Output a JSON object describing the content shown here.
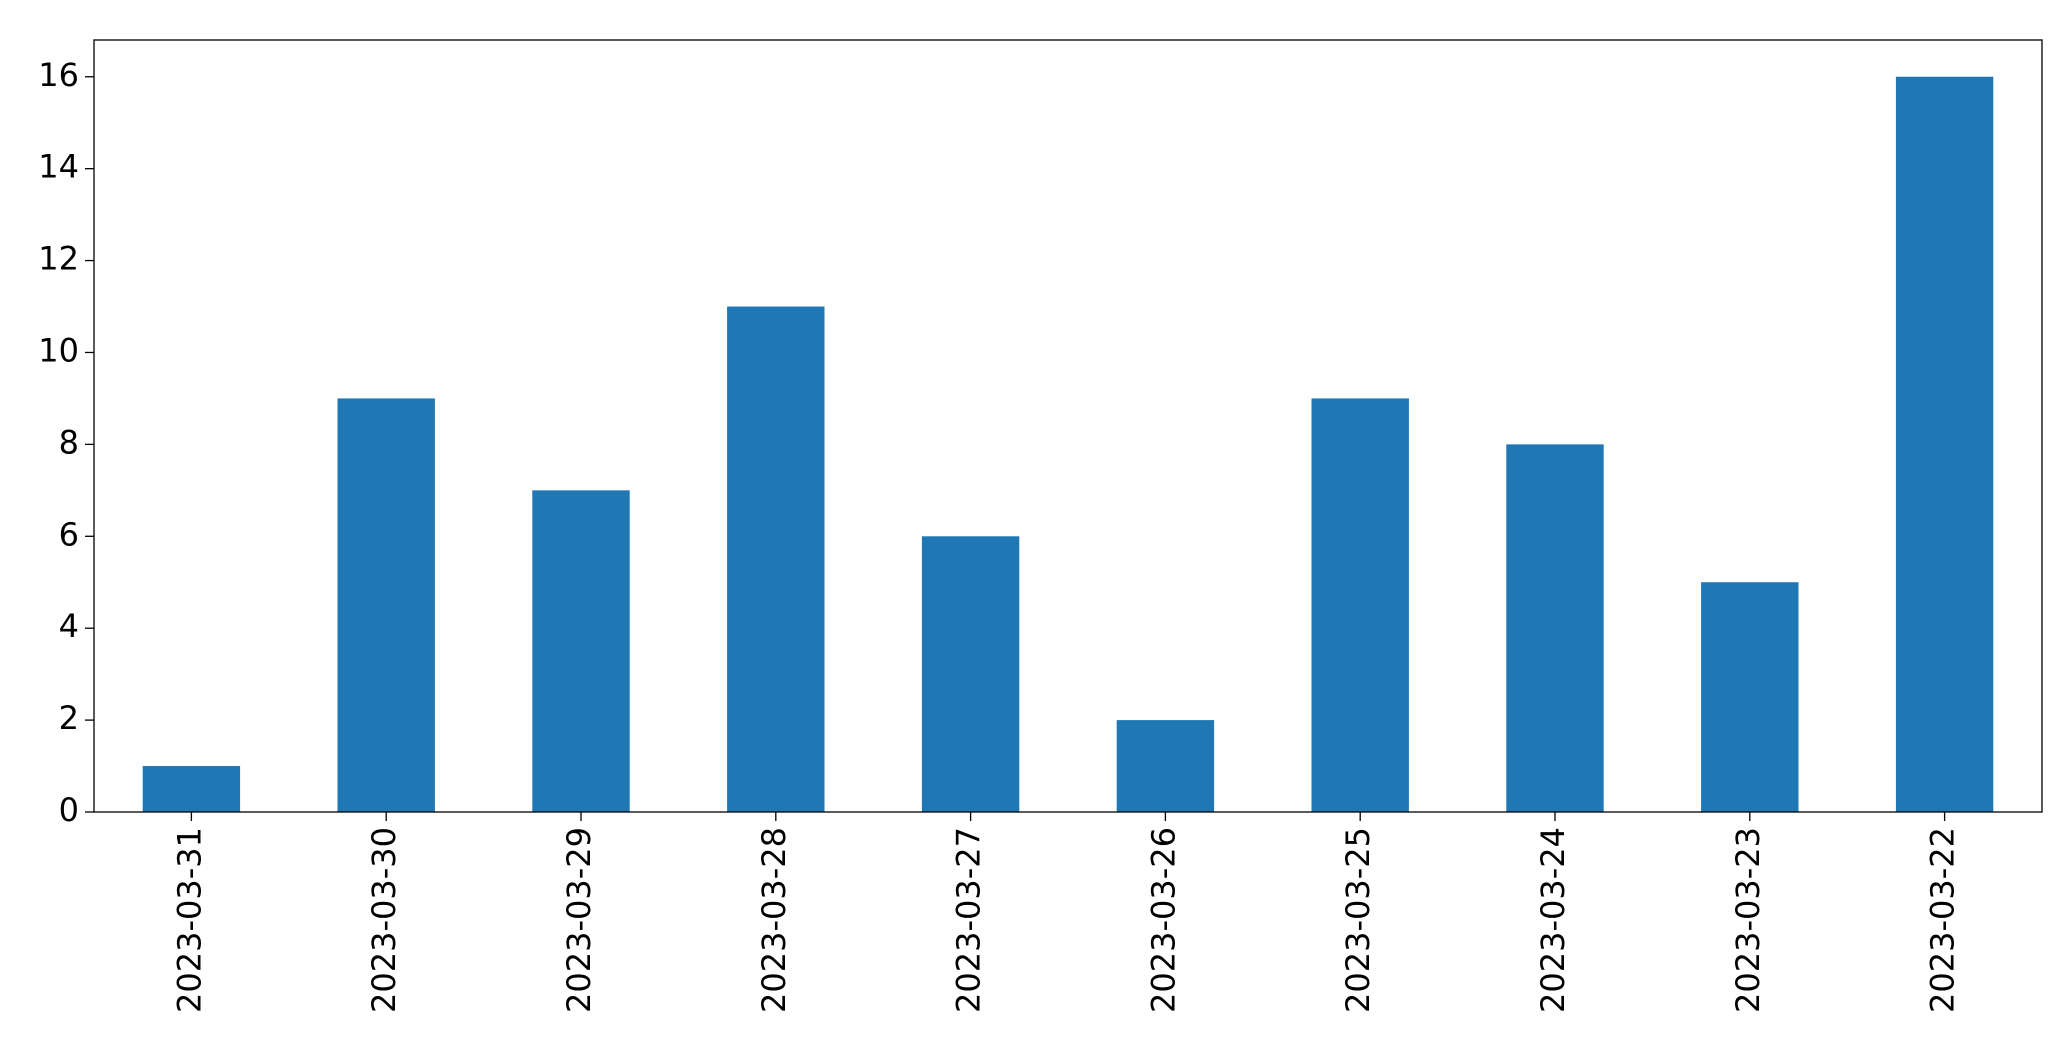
{
  "chart_data": {
    "type": "bar",
    "categories": [
      "2023-03-31",
      "2023-03-30",
      "2023-03-29",
      "2023-03-28",
      "2023-03-27",
      "2023-03-26",
      "2023-03-25",
      "2023-03-24",
      "2023-03-23",
      "2023-03-22"
    ],
    "values": [
      1,
      9,
      7,
      11,
      6,
      2,
      9,
      8,
      5,
      16
    ],
    "color": "#1f77b4",
    "ylim": [
      0,
      16.8
    ],
    "yticks": [
      0,
      2,
      4,
      6,
      8,
      10,
      12,
      14,
      16
    ],
    "grid": false
  }
}
